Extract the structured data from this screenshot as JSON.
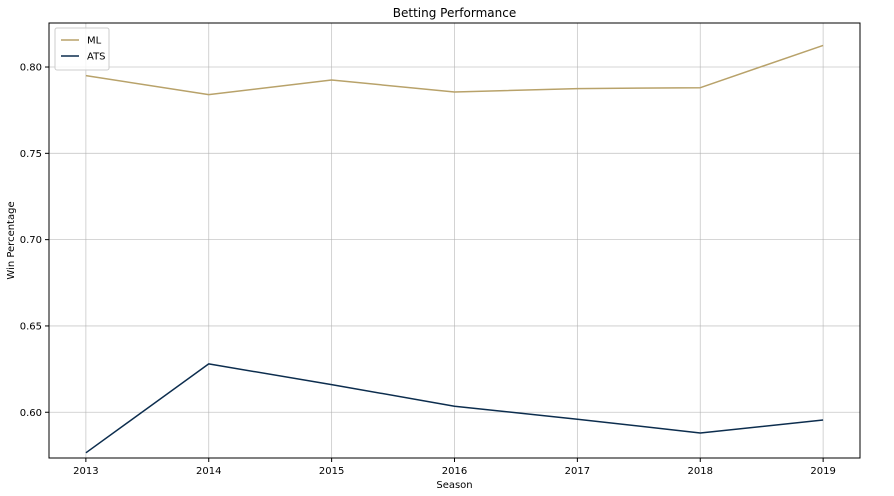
{
  "chart_data": {
    "type": "line",
    "title": "Betting Performance",
    "xlabel": "Season",
    "ylabel": "Win Percentage",
    "x": [
      2013,
      2014,
      2015,
      2016,
      2017,
      2018,
      2019
    ],
    "x_ticks": [
      "2013",
      "2014",
      "2015",
      "2016",
      "2017",
      "2018",
      "2019"
    ],
    "y_ticks": [
      "0.60",
      "0.65",
      "0.70",
      "0.75",
      "0.80"
    ],
    "xlim": [
      2012.7,
      2019.3
    ],
    "ylim": [
      0.5735,
      0.8255
    ],
    "grid": true,
    "legend_position": "top-left",
    "series": [
      {
        "name": "ML",
        "color": "#b8a26a",
        "values": [
          0.795,
          0.784,
          0.7925,
          0.7855,
          0.7875,
          0.788,
          0.8125
        ]
      },
      {
        "name": "ATS",
        "color": "#0c2d4e",
        "values": [
          0.5765,
          0.628,
          0.616,
          0.6035,
          0.596,
          0.588,
          0.5955
        ]
      }
    ]
  }
}
